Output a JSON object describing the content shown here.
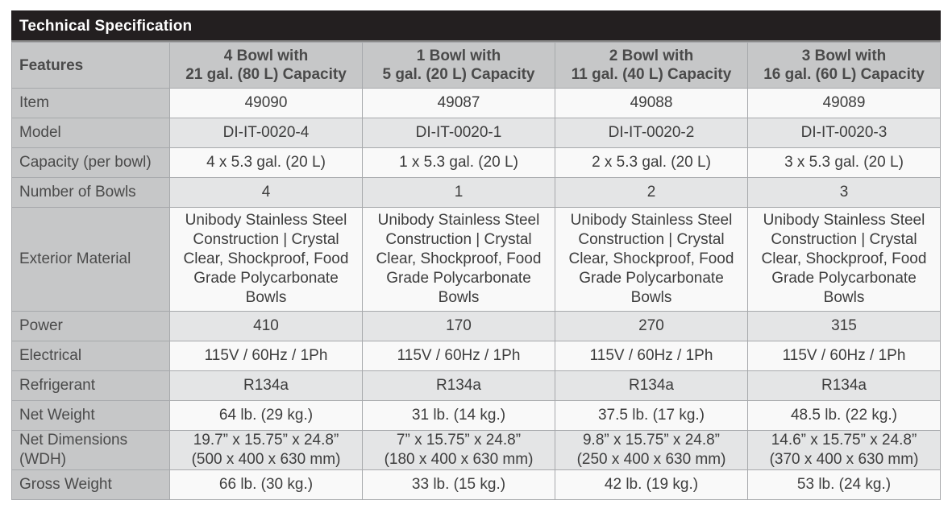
{
  "title": "Technical Specification",
  "colors": {
    "title_bg": "#231f20",
    "header_bg": "#c6c7c8",
    "row_light": "#f9f9f9",
    "row_dark": "#e4e5e6"
  },
  "header": {
    "features_label": "Features",
    "columns": [
      {
        "line1": "4 Bowl with",
        "line2": "21 gal. (80 L) Capacity"
      },
      {
        "line1": "1 Bowl with",
        "line2": "5 gal. (20 L) Capacity"
      },
      {
        "line1": "2 Bowl with",
        "line2": "11 gal. (40 L) Capacity"
      },
      {
        "line1": "3 Bowl with",
        "line2": "16 gal. (60 L) Capacity"
      }
    ]
  },
  "rows": [
    {
      "label": "Item",
      "values": [
        "49090",
        "49087",
        "49088",
        "49089"
      ]
    },
    {
      "label": "Model",
      "values": [
        "DI-IT-0020-4",
        "DI-IT-0020-1",
        "DI-IT-0020-2",
        "DI-IT-0020-3"
      ]
    },
    {
      "label": "Capacity (per bowl)",
      "values": [
        "4 x 5.3 gal. (20 L)",
        "1 x 5.3 gal. (20 L)",
        "2 x 5.3 gal. (20 L)",
        "3 x 5.3 gal. (20 L)"
      ]
    },
    {
      "label": "Number of Bowls",
      "values": [
        "4",
        "1",
        "2",
        "3"
      ]
    },
    {
      "label": "Exterior Material",
      "values": [
        "Unibody Stainless Steel Construction | Crystal Clear, Shockproof, Food Grade Polycarbonate Bowls",
        "Unibody Stainless Steel Construction | Crystal Clear, Shockproof, Food Grade Polycarbonate Bowls",
        "Unibody Stainless Steel Construction | Crystal Clear, Shockproof, Food Grade Polycarbonate Bowls",
        "Unibody Stainless Steel Construction | Crystal Clear, Shockproof, Food Grade Polycarbonate Bowls"
      ]
    },
    {
      "label": "Power",
      "values": [
        "410",
        "170",
        "270",
        "315"
      ]
    },
    {
      "label": "Electrical",
      "values": [
        "115V / 60Hz / 1Ph",
        "115V / 60Hz / 1Ph",
        "115V / 60Hz / 1Ph",
        "115V / 60Hz / 1Ph"
      ]
    },
    {
      "label": "Refrigerant",
      "values": [
        "R134a",
        "R134a",
        "R134a",
        "R134a"
      ]
    },
    {
      "label": "Net Weight",
      "values": [
        "64 lb. (29 kg.)",
        "31 lb. (14 kg.)",
        "37.5 lb. (17 kg.)",
        "48.5 lb. (22 kg.)"
      ]
    },
    {
      "label": "Net Dimensions (WDH)",
      "values": [
        "19.7” x 15.75” x 24.8” (500 x  400 x 630 mm)",
        "7” x 15.75” x 24.8” (180 x  400 x 630 mm)",
        "9.8” x 15.75” x 24.8” (250 x  400 x 630 mm)",
        "14.6” x 15.75” x 24.8” (370 x  400 x 630 mm)"
      ]
    },
    {
      "label": "Gross Weight",
      "values": [
        "66 lb. (30 kg.)",
        "33 lb. (15 kg.)",
        "42 lb. (19 kg.)",
        "53 lb. (24 kg.)"
      ]
    }
  ],
  "dimension_lines": [
    [
      "19.7” x 15.75” x 24.8”",
      "(500 x  400 x 630 mm)"
    ],
    [
      "7” x 15.75” x 24.8”",
      "(180 x  400 x 630 mm)"
    ],
    [
      "9.8” x 15.75” x 24.8”",
      "(250 x  400 x 630 mm)"
    ],
    [
      "14.6” x 15.75” x 24.8”",
      "(370 x  400 x 630 mm)"
    ]
  ]
}
